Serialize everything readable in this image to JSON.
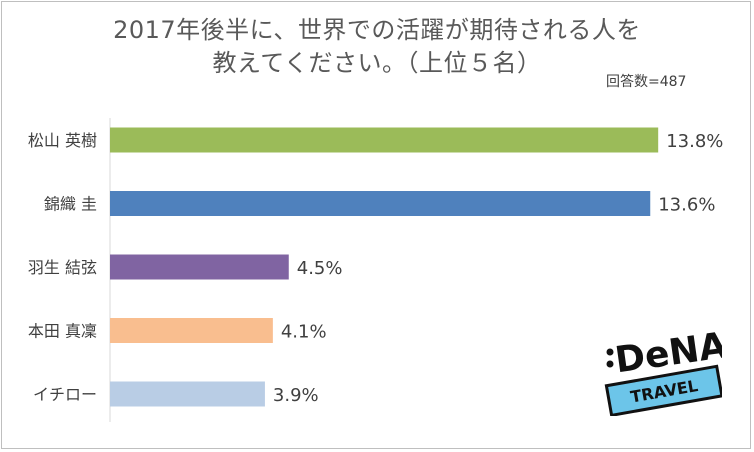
{
  "chart_title_line1": "2017年後半に、世界での活躍が期待される人を",
  "chart_title_line2": "教えてください。（上位５名）",
  "respondents": "回答数=487",
  "logo": {
    "brand": "DeNA",
    "sub": "TRAVEL",
    "brand_color": "#111111",
    "band_color": "#6cc5e9"
  },
  "chart_data": {
    "type": "bar",
    "orientation": "horizontal",
    "categories": [
      "松山 英樹",
      "錦織 圭",
      "羽生 結弦",
      "本田 真凜",
      "イチロー"
    ],
    "values": [
      13.8,
      13.6,
      4.5,
      4.1,
      3.9
    ],
    "value_labels": [
      "13.8%",
      "13.6%",
      "4.5%",
      "4.1%",
      "3.9%"
    ],
    "colors": [
      "#9bbb59",
      "#4f81bd",
      "#8064a2",
      "#f9be8f",
      "#b9cde5"
    ],
    "xlim": [
      0,
      14.5
    ],
    "grid": false,
    "legend": "none"
  }
}
